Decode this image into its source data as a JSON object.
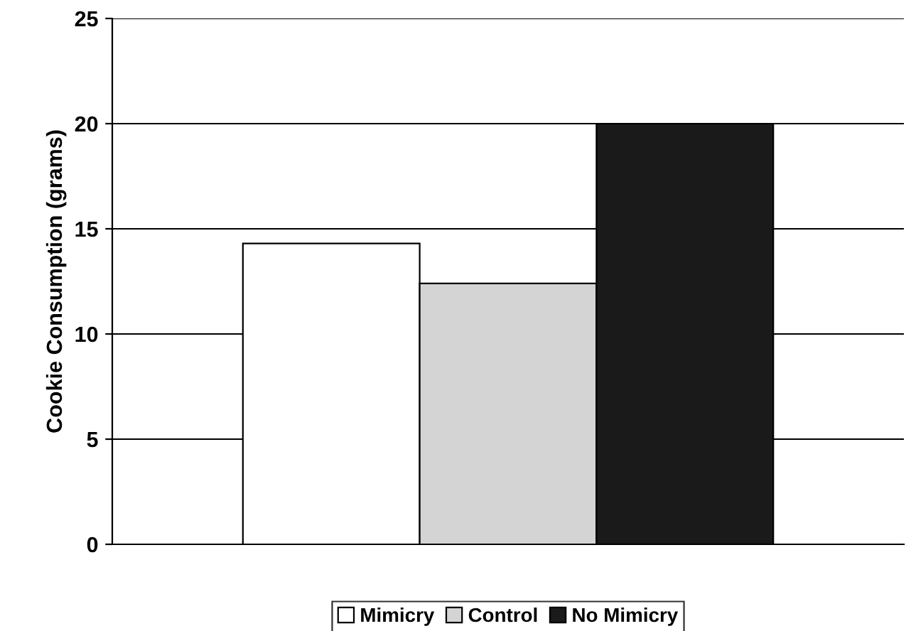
{
  "chart_data": {
    "type": "bar",
    "ylabel": "Cookie Consumption (grams)",
    "categories": [
      null
    ],
    "series": [
      {
        "name": "Mimicry",
        "color": "#ffffff",
        "values": [
          14.3
        ]
      },
      {
        "name": "Control",
        "color": "#d4d4d4",
        "values": [
          12.4
        ]
      },
      {
        "name": "No Mimicry",
        "color": "#1a1a1a",
        "values": [
          20.0
        ]
      }
    ],
    "ylim": [
      0,
      25
    ],
    "yticks": [
      0,
      5,
      10,
      15,
      20,
      25
    ],
    "grid": "y",
    "legend": "bottom"
  }
}
